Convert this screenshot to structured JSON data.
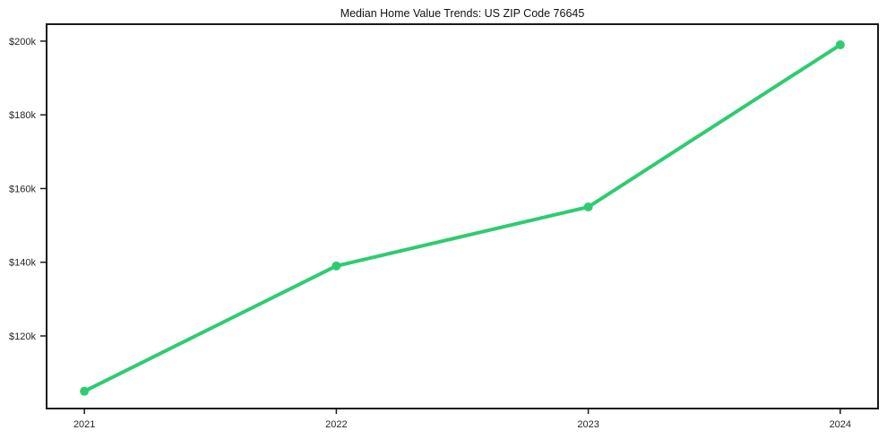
{
  "title": "Median Home Value Trends: US ZIP Code 76645",
  "colors": {
    "line": "#2ecc71",
    "axis": "#1a1a1a",
    "tick_text": "#262626",
    "background": "#ffffff"
  },
  "chart_data": {
    "type": "line",
    "title": "Median Home Value Trends: US ZIP Code 76645",
    "xlabel": "",
    "ylabel": "",
    "categories": [
      "2021",
      "2022",
      "2023",
      "2024"
    ],
    "x": [
      2021,
      2022,
      2023,
      2024
    ],
    "series": [
      {
        "name": "Median Home Value",
        "values": [
          105000,
          139000,
          155000,
          199000
        ]
      }
    ],
    "xticks": [
      {
        "value": 2021,
        "label": "2021"
      },
      {
        "value": 2022,
        "label": "2022"
      },
      {
        "value": 2023,
        "label": "2023"
      },
      {
        "value": 2024,
        "label": "2024"
      }
    ],
    "yticks": [
      {
        "value": 120000,
        "label": "$120k"
      },
      {
        "value": 140000,
        "label": "$140k"
      },
      {
        "value": 160000,
        "label": "$160k"
      },
      {
        "value": 180000,
        "label": "$180k"
      },
      {
        "value": 200000,
        "label": "$200k"
      }
    ],
    "xlim": [
      2020.85,
      2024.15
    ],
    "ylim": [
      100300,
      204600
    ],
    "grid": false,
    "legend_position": "none",
    "marker": "circle",
    "line_width": 4,
    "marker_radius": 5
  }
}
